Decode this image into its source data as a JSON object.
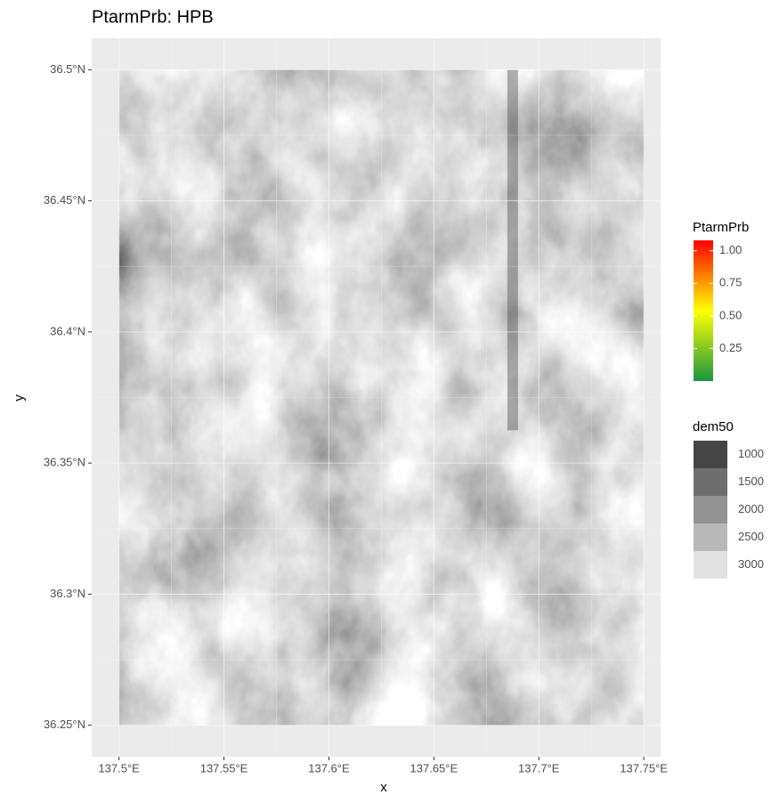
{
  "chart_data": {
    "type": "raster",
    "title": "PtarmPrb: HPB",
    "x_label": "x",
    "y_label": "y",
    "xlim": [
      137.487,
      137.758
    ],
    "ylim": [
      36.238,
      36.512
    ],
    "xticks": [
      {
        "value": 137.5,
        "label": "137.5°E"
      },
      {
        "value": 137.55,
        "label": "137.55°E"
      },
      {
        "value": 137.6,
        "label": "137.6°E"
      },
      {
        "value": 137.65,
        "label": "137.65°E"
      },
      {
        "value": 137.7,
        "label": "137.7°E"
      },
      {
        "value": 137.75,
        "label": "137.75°E"
      }
    ],
    "yticks": [
      {
        "value": 36.25,
        "label": "36.25°N"
      },
      {
        "value": 36.3,
        "label": "36.3°N"
      },
      {
        "value": 36.35,
        "label": "36.35°N"
      },
      {
        "value": 36.4,
        "label": "36.4°N"
      },
      {
        "value": 36.45,
        "label": "36.45°N"
      },
      {
        "value": 36.5,
        "label": "36.5°N"
      }
    ],
    "extent": {
      "x": [
        137.5,
        137.75
      ],
      "y": [
        36.25,
        36.5
      ]
    },
    "grid": true,
    "legends": [
      {
        "title": "PtarmPrb",
        "limits": [
          0,
          1.08
        ],
        "colors": [
          "#1a9641",
          "#ffff00",
          "#ff0000"
        ],
        "ticks": [
          {
            "value": 1,
            "label": "1.00"
          },
          {
            "value": 0.75,
            "label": "0.75"
          },
          {
            "value": 0.5,
            "label": "0.50"
          },
          {
            "value": 0.25,
            "label": "0.25"
          }
        ]
      },
      {
        "title": "dem50",
        "keys": [
          1000,
          1500,
          2000,
          2500,
          3000
        ],
        "colors": [
          "#454545",
          "#6e6e6e",
          "#929292",
          "#b8b8b8",
          "#e2e2e2"
        ]
      }
    ]
  }
}
